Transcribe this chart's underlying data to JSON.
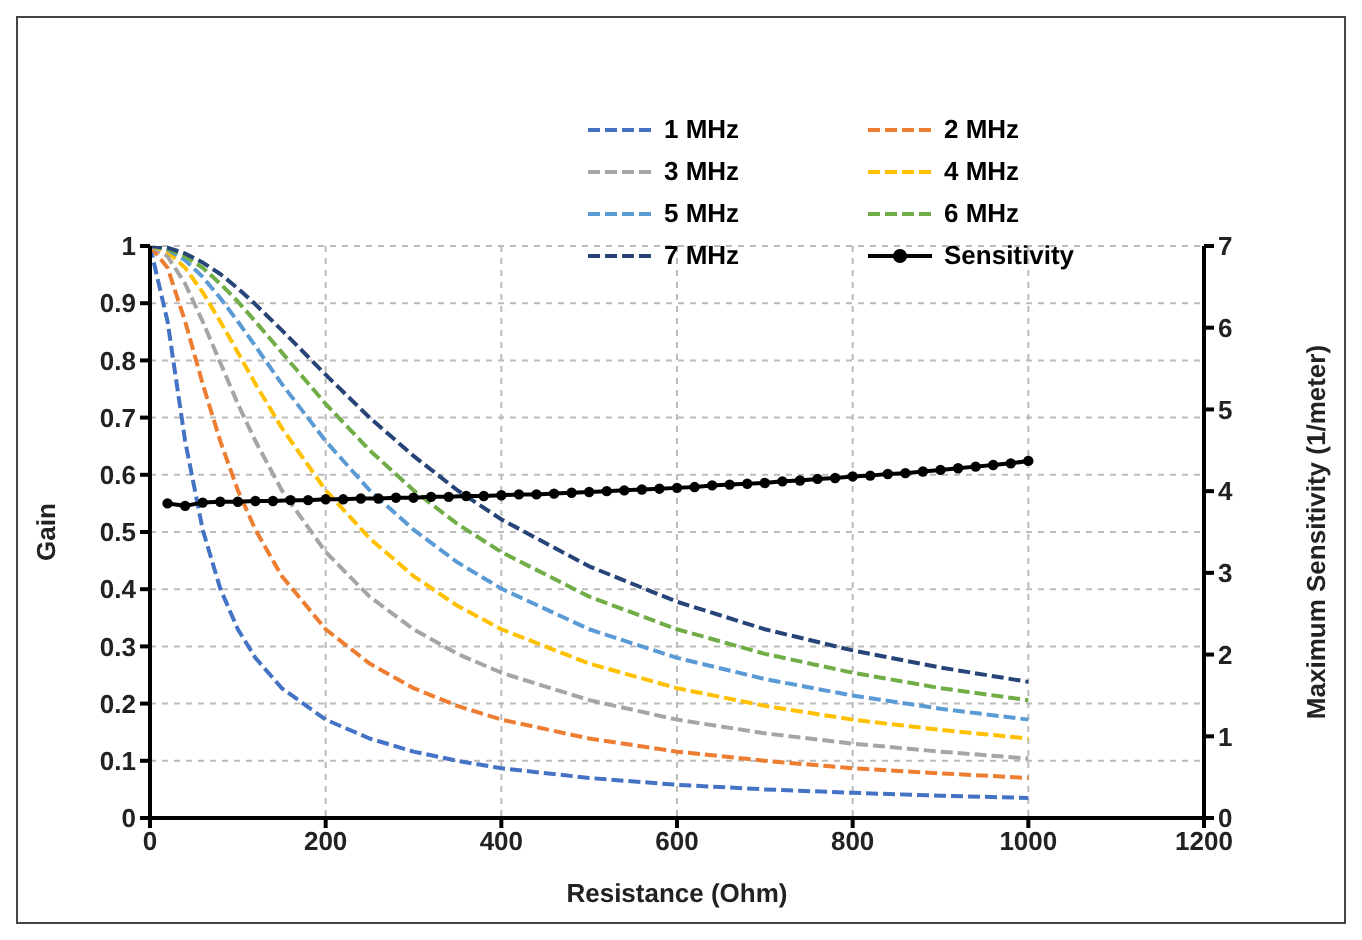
{
  "chart_data": {
    "type": "line",
    "xlabel": "Resistance (Ohm)",
    "ylabel": "Gain",
    "y2label": "Maximum Sensitivity (1/meter)",
    "xlim": [
      0,
      1200
    ],
    "xticks": [
      0,
      200,
      400,
      600,
      800,
      1000,
      1200
    ],
    "ylim": [
      0,
      1
    ],
    "yticks": [
      0,
      0.1,
      0.2,
      0.3,
      0.4,
      0.5,
      0.6,
      0.7,
      0.8,
      0.9,
      1
    ],
    "y2lim": [
      0,
      7
    ],
    "y2ticks": [
      0,
      1,
      2,
      3,
      4,
      5,
      6,
      7
    ],
    "grid": true,
    "legend": "top right",
    "line_style": "dashed",
    "marker": "none",
    "x": [
      0,
      20,
      40,
      60,
      80,
      100,
      120,
      150,
      200,
      250,
      300,
      350,
      400,
      500,
      600,
      700,
      800,
      900,
      1000
    ],
    "series": [
      {
        "name": "1 MHz",
        "color": "#4472c4",
        "values": [
          1,
          0.868,
          0.659,
          0.504,
          0.401,
          0.33,
          0.28,
          0.227,
          0.172,
          0.139,
          0.116,
          0.1,
          0.087,
          0.07,
          0.058,
          0.05,
          0.044,
          0.039,
          0.035
        ]
      },
      {
        "name": "2 MHz",
        "color": "#ed7d31",
        "values": [
          1,
          0.962,
          0.868,
          0.759,
          0.659,
          0.573,
          0.504,
          0.423,
          0.33,
          0.27,
          0.227,
          0.196,
          0.172,
          0.139,
          0.116,
          0.1,
          0.087,
          0.078,
          0.07
        ]
      },
      {
        "name": "3 MHz",
        "color": "#a5a5a5",
        "values": [
          1,
          0.982,
          0.934,
          0.868,
          0.796,
          0.724,
          0.659,
          0.573,
          0.465,
          0.387,
          0.33,
          0.287,
          0.254,
          0.206,
          0.172,
          0.148,
          0.13,
          0.116,
          0.104
        ]
      },
      {
        "name": "4 MHz",
        "color": "#ffc000",
        "values": [
          1,
          0.99,
          0.962,
          0.919,
          0.868,
          0.814,
          0.759,
          0.682,
          0.573,
          0.489,
          0.423,
          0.371,
          0.33,
          0.27,
          0.227,
          0.196,
          0.172,
          0.154,
          0.139
        ]
      },
      {
        "name": "5 MHz",
        "color": "#5b9bd5",
        "values": [
          1,
          0.994,
          0.975,
          0.946,
          0.909,
          0.868,
          0.825,
          0.759,
          0.659,
          0.573,
          0.504,
          0.447,
          0.401,
          0.33,
          0.28,
          0.243,
          0.214,
          0.191,
          0.172
        ]
      },
      {
        "name": "6 MHz",
        "color": "#70ad47",
        "values": [
          1,
          0.995,
          0.982,
          0.962,
          0.934,
          0.903,
          0.868,
          0.814,
          0.724,
          0.643,
          0.573,
          0.514,
          0.465,
          0.387,
          0.33,
          0.287,
          0.254,
          0.227,
          0.206
        ]
      },
      {
        "name": "7 MHz",
        "color": "#264478",
        "values": [
          1,
          0.997,
          0.987,
          0.971,
          0.951,
          0.926,
          0.898,
          0.853,
          0.775,
          0.7,
          0.633,
          0.573,
          0.522,
          0.44,
          0.378,
          0.33,
          0.293,
          0.263,
          0.238
        ]
      },
      {
        "name": "Sensitivity",
        "color": "#000000",
        "axis": "y2",
        "line_style": "solid",
        "marker": "circle",
        "x": [
          20,
          40,
          60,
          80,
          100,
          120,
          140,
          160,
          180,
          200,
          220,
          240,
          260,
          280,
          300,
          320,
          340,
          360,
          380,
          400,
          420,
          440,
          460,
          480,
          500,
          520,
          540,
          560,
          580,
          600,
          620,
          640,
          660,
          680,
          700,
          720,
          740,
          760,
          780,
          800,
          820,
          840,
          860,
          880,
          900,
          920,
          940,
          960,
          980,
          1000
        ],
        "values": [
          3.85,
          3.82,
          3.86,
          3.87,
          3.87,
          3.88,
          3.88,
          3.89,
          3.89,
          3.9,
          3.9,
          3.91,
          3.91,
          3.92,
          3.92,
          3.93,
          3.93,
          3.94,
          3.94,
          3.95,
          3.96,
          3.96,
          3.97,
          3.98,
          3.99,
          4.0,
          4.01,
          4.02,
          4.03,
          4.04,
          4.05,
          4.07,
          4.08,
          4.09,
          4.1,
          4.12,
          4.13,
          4.15,
          4.16,
          4.18,
          4.19,
          4.21,
          4.22,
          4.24,
          4.26,
          4.28,
          4.3,
          4.32,
          4.34,
          4.37
        ]
      }
    ]
  }
}
